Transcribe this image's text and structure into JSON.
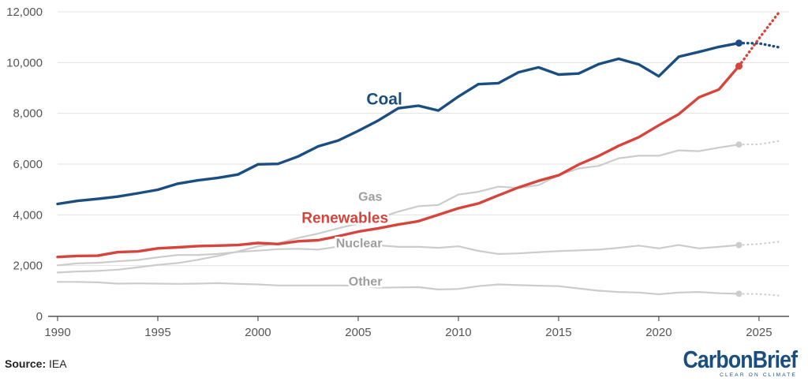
{
  "source": {
    "prefix": "Source:",
    "text": " IEA"
  },
  "brand": {
    "name": "CarbonBrief",
    "tagline": "CLEAR ON CLIMATE",
    "color": "#1a4e80"
  },
  "chart_data": {
    "type": "line",
    "title": "",
    "xlabel": "",
    "ylabel": "",
    "xlim": [
      1990,
      2026.5
    ],
    "ylim": [
      0,
      12000
    ],
    "x_ticks": [
      1990,
      1995,
      2000,
      2005,
      2010,
      2015,
      2020,
      2025
    ],
    "x_tick_labels": [
      "1990",
      "1995",
      "2000",
      "2005",
      "2010",
      "2015",
      "2020",
      "2025"
    ],
    "y_ticks": [
      0,
      2000,
      4000,
      6000,
      8000,
      10000,
      12000
    ],
    "y_tick_labels": [
      "0",
      "2,000",
      "4,000",
      "6,000",
      "8,000",
      "10,000",
      "12,000"
    ],
    "grid": true,
    "series": [
      {
        "name": "Coal",
        "label": "Coal",
        "color": "#1a4e80",
        "emphasis": true,
        "x": [
          1990,
          1991,
          1992,
          1993,
          1994,
          1995,
          1996,
          1997,
          1998,
          1999,
          2000,
          2001,
          2002,
          2003,
          2004,
          2005,
          2006,
          2007,
          2008,
          2009,
          2010,
          2011,
          2012,
          2013,
          2014,
          2015,
          2016,
          2017,
          2018,
          2019,
          2020,
          2021,
          2022,
          2023,
          2024
        ],
        "values": [
          4430,
          4550,
          4630,
          4720,
          4850,
          4990,
          5230,
          5360,
          5460,
          5590,
          5990,
          6010,
          6300,
          6700,
          6930,
          7310,
          7720,
          8200,
          8300,
          8110,
          8660,
          9150,
          9190,
          9620,
          9810,
          9530,
          9570,
          9940,
          10150,
          9930,
          9460,
          10230,
          10420,
          10620,
          10770
        ],
        "projection_x": [
          2024,
          2025,
          2026
        ],
        "projection_values": [
          10770,
          10760,
          10600
        ]
      },
      {
        "name": "Renewables",
        "label": "Renewables",
        "color": "#d6443b",
        "emphasis": true,
        "x": [
          1990,
          1991,
          1992,
          1993,
          1994,
          1995,
          1996,
          1997,
          1998,
          1999,
          2000,
          2001,
          2002,
          2003,
          2004,
          2005,
          2006,
          2007,
          2008,
          2009,
          2010,
          2011,
          2012,
          2013,
          2014,
          2015,
          2016,
          2017,
          2018,
          2019,
          2020,
          2021,
          2022,
          2023,
          2024
        ],
        "values": [
          2340,
          2380,
          2390,
          2530,
          2560,
          2680,
          2720,
          2770,
          2790,
          2810,
          2890,
          2850,
          2960,
          3000,
          3160,
          3340,
          3470,
          3620,
          3750,
          4000,
          4260,
          4450,
          4770,
          5080,
          5340,
          5560,
          5980,
          6320,
          6720,
          7060,
          7530,
          7970,
          8630,
          8940,
          9860
        ],
        "projection_x": [
          2024,
          2025,
          2026
        ],
        "projection_values": [
          9860,
          10950,
          11980
        ]
      },
      {
        "name": "Gas",
        "label": "Gas",
        "color": "#cccccc",
        "emphasis": false,
        "x": [
          1990,
          1991,
          1992,
          1993,
          1994,
          1995,
          1996,
          1997,
          1998,
          1999,
          2000,
          2001,
          2002,
          2003,
          2004,
          2005,
          2006,
          2007,
          2008,
          2009,
          2010,
          2011,
          2012,
          2013,
          2014,
          2015,
          2016,
          2017,
          2018,
          2019,
          2020,
          2021,
          2022,
          2023,
          2024
        ],
        "values": [
          1730,
          1770,
          1790,
          1840,
          1930,
          2030,
          2100,
          2230,
          2380,
          2560,
          2760,
          2880,
          3090,
          3260,
          3470,
          3660,
          3860,
          4130,
          4340,
          4390,
          4800,
          4910,
          5110,
          5060,
          5170,
          5560,
          5830,
          5930,
          6230,
          6330,
          6330,
          6540,
          6510,
          6650,
          6770
        ],
        "projection_x": [
          2024,
          2025,
          2026
        ],
        "projection_values": [
          6770,
          6780,
          6910
        ]
      },
      {
        "name": "Nuclear",
        "label": "Nuclear",
        "color": "#cccccc",
        "emphasis": false,
        "x": [
          1990,
          1991,
          1992,
          1993,
          1994,
          1995,
          1996,
          1997,
          1998,
          1999,
          2000,
          2001,
          2002,
          2003,
          2004,
          2005,
          2006,
          2007,
          2008,
          2009,
          2010,
          2011,
          2012,
          2013,
          2014,
          2015,
          2016,
          2017,
          2018,
          2019,
          2020,
          2021,
          2022,
          2023,
          2024
        ],
        "values": [
          2010,
          2090,
          2110,
          2170,
          2220,
          2330,
          2420,
          2420,
          2460,
          2540,
          2590,
          2650,
          2660,
          2630,
          2750,
          2770,
          2800,
          2740,
          2740,
          2700,
          2760,
          2580,
          2460,
          2480,
          2530,
          2570,
          2600,
          2630,
          2700,
          2790,
          2680,
          2810,
          2680,
          2740,
          2810
        ],
        "projection_x": [
          2024,
          2025,
          2026
        ],
        "projection_values": [
          2810,
          2850,
          2940
        ]
      },
      {
        "name": "Other",
        "label": "Other",
        "color": "#cccccc",
        "emphasis": false,
        "x": [
          1990,
          1991,
          1992,
          1993,
          1994,
          1995,
          1996,
          1997,
          1998,
          1999,
          2000,
          2001,
          2002,
          2003,
          2004,
          2005,
          2006,
          2007,
          2008,
          2009,
          2010,
          2011,
          2012,
          2013,
          2014,
          2015,
          2016,
          2017,
          2018,
          2019,
          2020,
          2021,
          2022,
          2023,
          2024
        ],
        "values": [
          1360,
          1360,
          1340,
          1290,
          1300,
          1290,
          1280,
          1290,
          1310,
          1280,
          1260,
          1220,
          1220,
          1220,
          1220,
          1210,
          1130,
          1140,
          1150,
          1060,
          1080,
          1190,
          1260,
          1230,
          1210,
          1190,
          1100,
          1010,
          960,
          940,
          870,
          940,
          960,
          910,
          890
        ],
        "projection_x": [
          2024,
          2025,
          2026
        ],
        "projection_values": [
          890,
          880,
          820
        ]
      }
    ],
    "annotations": [
      {
        "series": "Coal",
        "text": "Coal",
        "x": 2007.2,
        "y": 8350
      },
      {
        "series": "Renewables",
        "text": "Renewables",
        "x": 2006.5,
        "y": 3680
      },
      {
        "series": "Gas",
        "text": "Gas",
        "x": 2006.2,
        "y": 4550
      },
      {
        "series": "Nuclear",
        "text": "Nuclear",
        "x": 2006.2,
        "y": 2720
      },
      {
        "series": "Other",
        "text": "Other",
        "x": 2006.2,
        "y": 1220
      }
    ]
  }
}
